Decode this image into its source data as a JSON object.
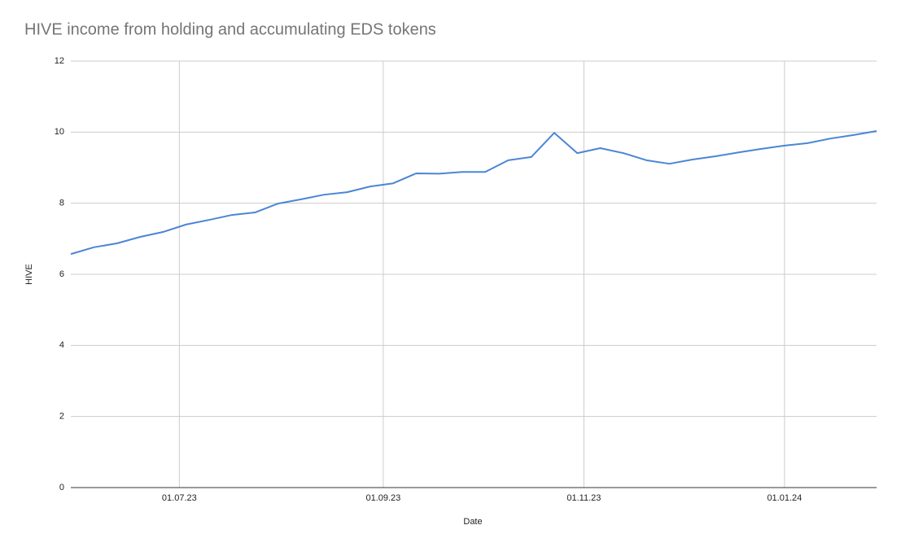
{
  "chart_data": {
    "type": "line",
    "title": "HIVE income from holding and accumulating EDS tokens",
    "xlabel": "Date",
    "ylabel": "HIVE",
    "x": [
      "2023-05-29",
      "2023-06-05",
      "2023-06-12",
      "2023-06-19",
      "2023-06-26",
      "2023-07-03",
      "2023-07-10",
      "2023-07-17",
      "2023-07-24",
      "2023-07-31",
      "2023-08-07",
      "2023-08-14",
      "2023-08-21",
      "2023-08-28",
      "2023-09-04",
      "2023-09-11",
      "2023-09-18",
      "2023-09-25",
      "2023-10-02",
      "2023-10-09",
      "2023-10-16",
      "2023-10-23",
      "2023-10-30",
      "2023-11-06",
      "2023-11-13",
      "2023-11-20",
      "2023-11-27",
      "2023-12-04",
      "2023-12-11",
      "2023-12-18",
      "2023-12-25",
      "2024-01-01",
      "2024-01-08",
      "2024-01-15",
      "2024-01-22",
      "2024-01-29"
    ],
    "series": [
      {
        "name": "HIVE",
        "color": "#4a86d4",
        "values": [
          6.57,
          6.76,
          6.87,
          7.05,
          7.19,
          7.4,
          7.53,
          7.67,
          7.74,
          7.99,
          8.11,
          8.24,
          8.31,
          8.47,
          8.56,
          8.84,
          8.83,
          8.88,
          8.88,
          9.21,
          9.3,
          9.98,
          9.41,
          9.55,
          9.41,
          9.21,
          9.11,
          9.23,
          9.32,
          9.43,
          9.53,
          9.62,
          9.69,
          9.82,
          9.92,
          10.03
        ]
      }
    ],
    "xlim": [
      "2023-05-29",
      "2024-01-29"
    ],
    "xticks": [
      {
        "value": "2023-07-01",
        "label": "01.07.23"
      },
      {
        "value": "2023-09-01",
        "label": "01.09.23"
      },
      {
        "value": "2023-11-01",
        "label": "01.11.23"
      },
      {
        "value": "2024-01-01",
        "label": "01.01.24"
      }
    ],
    "ylim": [
      0,
      12
    ],
    "yticks": [
      0,
      2,
      4,
      6,
      8,
      10,
      12
    ],
    "grid": true
  }
}
